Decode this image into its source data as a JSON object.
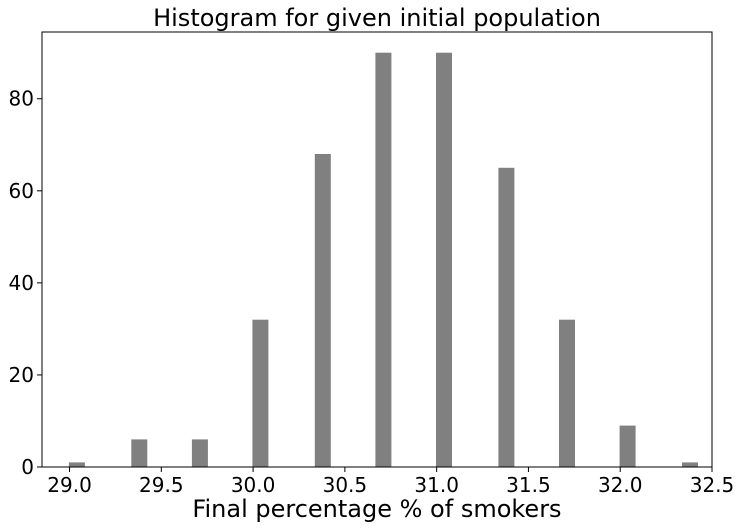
{
  "chart_data": {
    "type": "bar",
    "title": "Histogram for given initial population",
    "xlabel": "Final percentage % of smokers",
    "ylabel": "",
    "xlim": [
      28.85,
      32.5
    ],
    "ylim": [
      0,
      94.5
    ],
    "xticks": [
      29.0,
      29.5,
      30.0,
      30.5,
      31.0,
      31.5,
      32.0,
      32.5
    ],
    "xtick_labels": [
      "29.0",
      "29.5",
      "30.0",
      "30.5",
      "31.0",
      "31.5",
      "32.0",
      "32.5"
    ],
    "yticks": [
      0,
      20,
      40,
      60,
      80
    ],
    "ytick_labels": [
      "0",
      "20",
      "40",
      "60",
      "80"
    ],
    "bar_color": "#808080",
    "grid": false,
    "bars": [
      {
        "x": 29.04,
        "value": 1
      },
      {
        "x": 29.38,
        "value": 6
      },
      {
        "x": 29.71,
        "value": 6
      },
      {
        "x": 30.04,
        "value": 32
      },
      {
        "x": 30.38,
        "value": 68
      },
      {
        "x": 30.71,
        "value": 90
      },
      {
        "x": 31.04,
        "value": 90
      },
      {
        "x": 31.38,
        "value": 65
      },
      {
        "x": 31.71,
        "value": 32
      },
      {
        "x": 32.04,
        "value": 9
      },
      {
        "x": 32.38,
        "value": 1
      }
    ]
  }
}
